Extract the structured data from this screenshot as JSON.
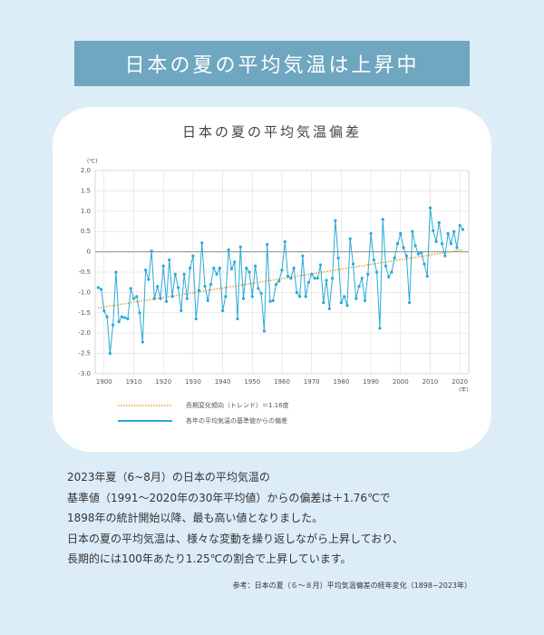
{
  "header": {
    "title": "日本の夏の平均気温は上昇中"
  },
  "chart_data": {
    "type": "line",
    "title": "日本の夏の平均気温偏差",
    "y_unit": "(℃)",
    "x_unit": "(年)",
    "x": [
      1898,
      1899,
      1900,
      1901,
      1902,
      1903,
      1904,
      1905,
      1906,
      1907,
      1908,
      1909,
      1910,
      1911,
      1912,
      1913,
      1914,
      1915,
      1916,
      1917,
      1918,
      1919,
      1920,
      1921,
      1922,
      1923,
      1924,
      1925,
      1926,
      1927,
      1928,
      1929,
      1930,
      1931,
      1932,
      1933,
      1934,
      1935,
      1936,
      1937,
      1938,
      1939,
      1940,
      1941,
      1942,
      1943,
      1944,
      1945,
      1946,
      1947,
      1948,
      1949,
      1950,
      1951,
      1952,
      1953,
      1954,
      1955,
      1956,
      1957,
      1958,
      1959,
      1960,
      1961,
      1962,
      1963,
      1964,
      1965,
      1966,
      1967,
      1968,
      1969,
      1970,
      1971,
      1972,
      1973,
      1974,
      1975,
      1976,
      1977,
      1978,
      1979,
      1980,
      1981,
      1982,
      1983,
      1984,
      1985,
      1986,
      1987,
      1988,
      1989,
      1990,
      1991,
      1992,
      1993,
      1994,
      1995,
      1996,
      1997,
      1998,
      1999,
      2000,
      2001,
      2002,
      2003,
      2004,
      2005,
      2006,
      2007,
      2008,
      2009,
      2010,
      2011,
      2012,
      2013,
      2014,
      2015,
      2016,
      2017,
      2018,
      2019,
      2020,
      2021
    ],
    "series": [
      {
        "name": "各年の平均気温の基準値からの偏差",
        "color": "#29a9d8",
        "values": [
          -0.88,
          -0.92,
          -1.45,
          -1.6,
          -2.5,
          -1.8,
          -0.5,
          -1.72,
          -1.6,
          -1.62,
          -1.65,
          -0.9,
          -1.15,
          -1.1,
          -1.5,
          -2.22,
          -0.45,
          -0.68,
          0.02,
          -1.15,
          -0.85,
          -1.15,
          -0.35,
          -1.22,
          -0.2,
          -1.1,
          -0.55,
          -0.88,
          -1.45,
          -0.55,
          -1.15,
          -0.4,
          -0.1,
          -1.65,
          -0.95,
          0.22,
          -0.85,
          -1.2,
          -0.8,
          -0.4,
          -0.55,
          -0.4,
          -1.45,
          -1.1,
          0.05,
          -0.42,
          -0.25,
          -1.65,
          0.12,
          -1.15,
          -0.4,
          -0.5,
          -1.1,
          -0.35,
          -0.9,
          -1.02,
          -1.95,
          0.18,
          -1.22,
          -1.2,
          -0.8,
          -0.72,
          -0.45,
          0.25,
          -0.6,
          -0.65,
          -0.4,
          -1.0,
          -1.1,
          -0.1,
          -1.1,
          -0.75,
          -0.55,
          -0.65,
          -0.65,
          -0.32,
          -1.25,
          -0.7,
          -1.4,
          -0.65,
          0.77,
          -0.15,
          -1.25,
          -1.1,
          -1.32,
          0.32,
          -0.3,
          -1.15,
          -0.85,
          -0.65,
          -1.2,
          -0.55,
          0.45,
          -0.2,
          -0.5,
          -1.88,
          0.8,
          -0.35,
          -0.62,
          -0.5,
          -0.15,
          0.2,
          0.45,
          0.1,
          -0.1,
          -1.25,
          0.5,
          0.15,
          -0.05,
          -0.02,
          -0.3,
          -0.6,
          1.08,
          0.52,
          0.25,
          0.72,
          0.2,
          -0.1,
          0.45,
          0.2,
          0.5,
          0.1,
          0.65,
          0.55
        ]
      }
    ],
    "trend": {
      "name": "長期変化傾向（トレンド）＝1.16度",
      "color": "#f0a030",
      "x": [
        1898,
        2021
      ],
      "values": [
        -1.38,
        0.05
      ]
    },
    "xlim": [
      1897,
      2023
    ],
    "xticks": [
      1900,
      1910,
      1920,
      1930,
      1940,
      1950,
      1960,
      1970,
      1980,
      1990,
      2000,
      2010,
      2020
    ],
    "ylim": [
      -3,
      2
    ],
    "yticks": [
      {
        "value": 2,
        "label": "2.0"
      },
      1.5,
      {
        "value": 1,
        "label": "1.0"
      },
      0.5,
      0,
      -0.5,
      {
        "value": -1,
        "label": "-1.0"
      },
      -1.5,
      {
        "value": -2,
        "label": "-2.0"
      },
      -2.5,
      {
        "value": -3,
        "label": "-3.0"
      }
    ],
    "grid": true
  },
  "body": {
    "lines": [
      "2023年夏（6~8月）の日本の平均気温の",
      "基準値（1991～2020年の30年平均値）からの偏差は＋1.76℃で",
      "1898年の統計開始以降、最も高い値となりました。",
      "日本の夏の平均気温は、様々な変動を繰り返しながら上昇しており、",
      "長期的には100年あたり1.25℃の割合で上昇しています。"
    ],
    "source": "参考：日本の夏（６～８月）平均気温偏差の経年変化（1898~2023年）"
  }
}
